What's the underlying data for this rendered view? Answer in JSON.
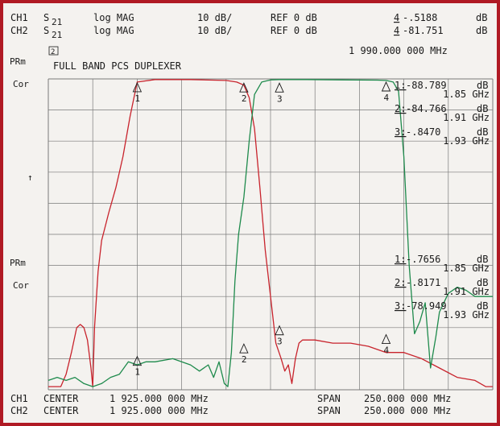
{
  "header": {
    "ch1": {
      "label": "CH1",
      "param": "S",
      "sub": "21",
      "format": "log MAG",
      "scale": "10 dB/",
      "ref": "REF 0 dB",
      "marker_num": "4",
      "marker_val": "-.5188",
      "marker_unit": "dB"
    },
    "ch2": {
      "label": "CH2",
      "param": "S",
      "sub": "21",
      "format": "log MAG",
      "scale": "10 dB/",
      "ref": "REF 0 dB",
      "marker_num": "4",
      "marker_val": "-81.751",
      "marker_unit": "dB"
    }
  },
  "left_labels": {
    "prm1": "PRm",
    "cor1": "Cor",
    "arrow": "↑",
    "prm2": "PRm",
    "cor2": "Cor"
  },
  "box_label": "2",
  "title": "FULL BAND PCS DUPLEXER",
  "marker_freq": "1 990.000 000 MHz",
  "footer": {
    "ch1": {
      "label": "CH1",
      "center_label": "CENTER",
      "center": "1 925.000 000 MHz",
      "span_label": "SPAN",
      "span": "250.000 000 MHz"
    },
    "ch2": {
      "label": "CH2",
      "center_label": "CENTER",
      "center": "1 925.000 000 MHz",
      "span_label": "SPAN",
      "span": "250.000 000 MHz"
    }
  },
  "ch1_markers": [
    {
      "num": "1",
      "val": "-88.789",
      "unit": "dB",
      "freq": "1.85 GHz"
    },
    {
      "num": "2",
      "val": "-84.766",
      "unit": "dB",
      "freq": "1.91 GHz"
    },
    {
      "num": "3",
      "val": "-.8470",
      "unit": "dB",
      "freq": "1.93 GHz"
    }
  ],
  "ch2_markers": [
    {
      "num": "1",
      "val": "-.7656",
      "unit": "dB",
      "freq": "1.85 GHz"
    },
    {
      "num": "2",
      "val": "-.8171",
      "unit": "dB",
      "freq": "1.91 GHz"
    },
    {
      "num": "3",
      "val": "-78.949",
      "unit": "dB",
      "freq": "1.93 GHz"
    }
  ],
  "chart_data": {
    "type": "line",
    "title": "FULL BAND PCS DUPLEXER",
    "xlabel": "",
    "ylabel": "",
    "xlim": [
      1800,
      2050
    ],
    "ylim": [
      -100,
      0
    ],
    "grid": true,
    "colors": {
      "tx": "#c8232c",
      "rx": "#1e8a4c",
      "grid": "#7a7a7a",
      "bg": "#f4f2ef",
      "border": "#b01a24"
    },
    "series": [
      {
        "color": "#c8232c",
        "x": [
          1800,
          1807,
          1810,
          1813,
          1816,
          1818,
          1820,
          1822,
          1824,
          1825,
          1826,
          1828,
          1830,
          1834,
          1838,
          1842,
          1846,
          1850,
          1860,
          1880,
          1900,
          1906,
          1910,
          1913,
          1916,
          1919,
          1922,
          1925,
          1928,
          1931,
          1933,
          1935,
          1937,
          1939,
          1941,
          1943,
          1945,
          1950,
          1960,
          1970,
          1980,
          1990,
          2000,
          2010,
          2020,
          2030,
          2040,
          2046,
          2050
        ],
        "y": [
          -99,
          -99,
          -95,
          -88,
          -80,
          -79,
          -80,
          -84,
          -93,
          -99,
          -80,
          -62,
          -52,
          -43,
          -35,
          -25,
          -12,
          -1,
          -0.2,
          -0.2,
          -0.5,
          -1,
          -2,
          -6,
          -16,
          -35,
          -55,
          -70,
          -85,
          -90,
          -94,
          -92,
          -98,
          -90,
          -85,
          -84,
          -84,
          -84,
          -85,
          -85,
          -86,
          -88,
          -88,
          -90,
          -93,
          -96,
          -97,
          -99,
          -99
        ]
      },
      {
        "color": "#1e8a4c",
        "x": [
          1800,
          1805,
          1810,
          1815,
          1820,
          1825,
          1830,
          1835,
          1840,
          1845,
          1850,
          1855,
          1860,
          1870,
          1880,
          1885,
          1890,
          1893,
          1896,
          1899,
          1901,
          1903,
          1905,
          1907,
          1910,
          1913,
          1916,
          1920,
          1925,
          1930,
          1935,
          1945,
          1965,
          1985,
          1990,
          1994,
          1997,
          2000,
          2003,
          2006,
          2009,
          2012,
          2015,
          2018,
          2020,
          2025,
          2030,
          2035,
          2040,
          2046,
          2050
        ],
        "y": [
          -97,
          -96,
          -97,
          -96,
          -98,
          -99,
          -98,
          -96,
          -95,
          -91,
          -92,
          -91,
          -91,
          -90,
          -92,
          -94,
          -92,
          -96,
          -91,
          -98,
          -99,
          -88,
          -65,
          -50,
          -38,
          -20,
          -5,
          -1,
          -0.3,
          -0.2,
          -0.2,
          -0.2,
          -0.3,
          -0.4,
          -0.5,
          -1,
          -4,
          -25,
          -60,
          -82,
          -78,
          -72,
          -93,
          -83,
          -75,
          -69,
          -67,
          -68,
          -70,
          -70,
          -70
        ]
      }
    ],
    "ch1_markers": [
      {
        "num": "1",
        "x": 1850,
        "y": -88.789
      },
      {
        "num": "2",
        "x": 1910,
        "y": -84.766
      },
      {
        "num": "3",
        "x": 1930,
        "y": -0.847
      },
      {
        "num": "4",
        "x": 1990,
        "y": -0.5188
      }
    ],
    "ch2_markers": [
      {
        "num": "1",
        "x": 1850,
        "y": -0.7656
      },
      {
        "num": "2",
        "x": 1910,
        "y": -0.8171
      },
      {
        "num": "3",
        "x": 1930,
        "y": -78.949
      },
      {
        "num": "4",
        "x": 1990,
        "y": -81.751
      }
    ]
  }
}
